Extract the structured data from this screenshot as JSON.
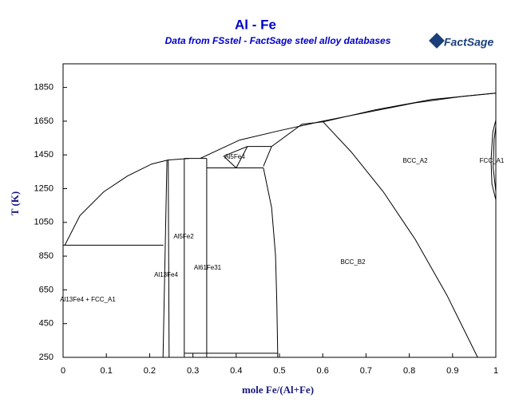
{
  "chart_data": {
    "type": "line",
    "title": "Al - Fe",
    "subtitle": "Data from FSstel - FactSage steel alloy databases",
    "logo": "FactSage",
    "x_label": "mole Fe/(Al+Fe)",
    "y_label": "T (K)",
    "xlim": [
      0,
      1
    ],
    "ylim": [
      250,
      1990
    ],
    "xticks": [
      0,
      0.1,
      0.2,
      0.3,
      0.4,
      0.5,
      0.6,
      0.7,
      0.8,
      0.9,
      1
    ],
    "yticks": [
      250,
      450,
      650,
      850,
      1050,
      1250,
      1450,
      1650,
      1850
    ],
    "annotations": [
      "Al5Fe4",
      "Al5Fe2",
      "Al13Fe4",
      "Al61Fe31",
      "Al13Fe4 + FCC_A1",
      "BCC_B2",
      "BCC_A2",
      "FCC_A1"
    ],
    "series": [
      {
        "color": "#000000",
        "x": [
          0.004,
          0.039,
          0.094,
          0.149,
          0.205,
          0.242,
          0.292
        ],
        "values": [
          915,
          1090,
          1231,
          1325,
          1396,
          1420,
          1429
        ]
      },
      {
        "color": "#000000",
        "x": [
          0,
          0.232
        ],
        "values": [
          915,
          915
        ]
      },
      {
        "color": "#000000",
        "x": [
          0.231,
          0.24
        ],
        "values": [
          250,
          1420
        ]
      },
      {
        "color": "#000000",
        "x": [
          0.245,
          0.243
        ],
        "values": [
          250,
          1420
        ]
      },
      {
        "color": "#000000",
        "x": [
          0.28,
          0.28
        ],
        "values": [
          250,
          1429
        ]
      },
      {
        "color": "#000000",
        "x": [
          0.332,
          0.332
        ],
        "values": [
          250,
          1429
        ]
      },
      {
        "color": "#000000",
        "x": [
          0.28,
          0.332
        ],
        "values": [
          1429,
          1429
        ]
      },
      {
        "color": "#000000",
        "x": [
          0.28,
          0.496,
          0.496
        ],
        "values": [
          274,
          274,
          250
        ]
      },
      {
        "color": "#000000",
        "x": [
          0.332,
          0.463
        ],
        "values": [
          1373,
          1373
        ]
      },
      {
        "color": "#000000",
        "x": [
          0.463,
          0.482,
          0.491,
          0.494,
          0.496
        ],
        "values": [
          1373,
          1137,
          854,
          571,
          274
        ]
      },
      {
        "color": "#000000",
        "x": [
          0.317,
          0.408,
          0.5,
          0.592,
          0.703,
          0.814,
          0.924,
          1.0
        ],
        "values": [
          1429,
          1538,
          1594,
          1646,
          1703,
          1759,
          1797,
          1816
        ]
      },
      {
        "color": "#000000",
        "x": [
          0.371,
          0.426,
          0.482,
          0.552,
          0.601,
          0.721,
          0.851,
          1.0
        ],
        "values": [
          1443,
          1500,
          1500,
          1632,
          1646,
          1717,
          1778,
          1816
        ]
      },
      {
        "color": "#000000",
        "x": [
          0.371,
          0.4,
          0.426
        ],
        "values": [
          1443,
          1373,
          1500
        ]
      },
      {
        "color": "#000000",
        "x": [
          0.463,
          0.482
        ],
        "values": [
          1382,
          1500
        ]
      },
      {
        "color": "#000000",
        "x": [
          0.601,
          0.666,
          0.74,
          0.814,
          0.887,
          0.958
        ],
        "values": [
          1646,
          1467,
          1231,
          948,
          618,
          250
        ]
      },
      {
        "color": "#000000",
        "x": [
          1.0,
          0.993,
          0.989,
          0.991,
          1.0
        ],
        "values": [
          1656,
          1585,
          1420,
          1278,
          1184
        ]
      },
      {
        "color": "#000000",
        "x": [
          1.0,
          0.996,
          0.994,
          1.0
        ],
        "values": [
          1618,
          1538,
          1373,
          1231
        ]
      }
    ]
  }
}
